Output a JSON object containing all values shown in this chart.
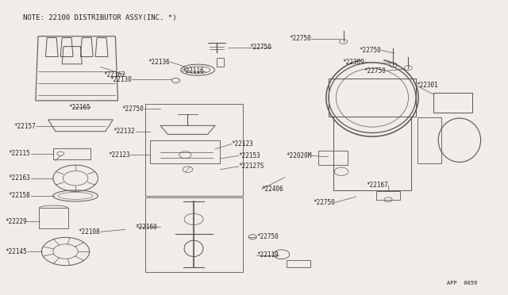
{
  "bg_color": "#f0ede8",
  "border_color": "#aaaaaa",
  "line_color": "#555555",
  "text_color": "#222222",
  "title": "NOTE: 22100 DISTRIBUTOR ASSY(INC. *)",
  "footer": "APP  0059",
  "label_fs": 5.5,
  "title_fs": 6.5
}
